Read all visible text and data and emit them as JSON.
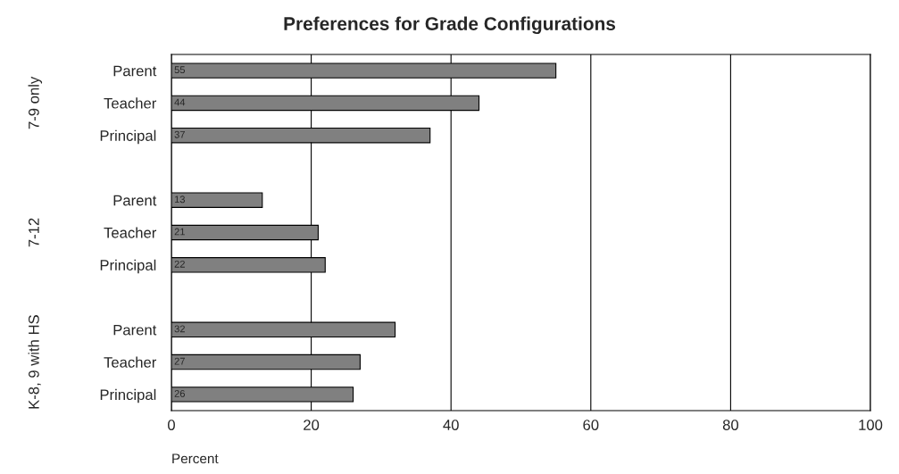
{
  "chart_data": {
    "type": "bar",
    "orientation": "horizontal",
    "title": "Preferences for Grade Configurations",
    "xlabel": "Percent",
    "categories": [
      "Parent",
      "Teacher",
      "Principal",
      null,
      "Parent",
      "Teacher",
      "Principal",
      null,
      "Parent",
      "Teacher",
      "Principal"
    ],
    "values": [
      55,
      44,
      37,
      null,
      13,
      21,
      22,
      null,
      32,
      27,
      26
    ],
    "color": "#808080",
    "xlim": [
      0,
      100
    ],
    "xticks": [
      0,
      20,
      40,
      60,
      80,
      100
    ],
    "grid": "x",
    "data_labels": true,
    "annotations": [
      "7-9 only",
      "7-12",
      "K-8, 9 with HS"
    ]
  }
}
